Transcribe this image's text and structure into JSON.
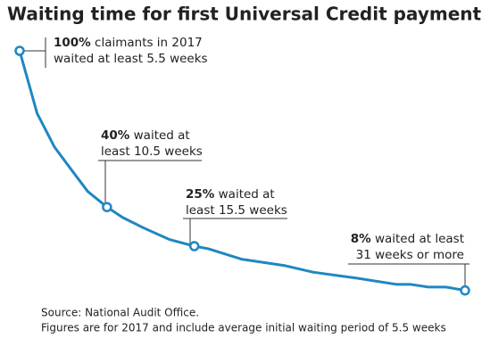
{
  "chart_data": {
    "type": "line",
    "title": "Waiting time for first Universal Credit payments",
    "x": [
      5.5,
      6.5,
      7.5,
      8.5,
      9.4,
      10.5,
      11.4,
      12.6,
      14.1,
      15.5,
      16.3,
      18.2,
      20.7,
      22.3,
      24.8,
      27.1,
      27.9,
      28.9,
      29.9,
      31
    ],
    "series": [
      {
        "color": "#1f87c2",
        "values": [
          100,
          76,
          63,
          54,
          46,
          40,
          36,
          32,
          27.5,
          25,
          24,
          20,
          17.5,
          15,
          12.7,
          10.3,
          10.3,
          9.3,
          9.3,
          8
        ]
      }
    ],
    "annotations": [
      {
        "bold": "100%",
        "text": "claimants in 2017",
        "line2": "waited at least 5.5 weeks"
      },
      {
        "bold": "40%",
        "text": "waited at",
        "line2": "least 10.5 weeks"
      },
      {
        "bold": "25%",
        "text": "waited at",
        "line2": "least 15.5 weeks"
      },
      {
        "bold": "8%",
        "text": "waited at least",
        "line2": "31 weeks or more"
      }
    ],
    "source": "Source: National Audit Office.",
    "note": "Figures are for 2017 and include average initial waiting period of 5.5 weeks"
  }
}
